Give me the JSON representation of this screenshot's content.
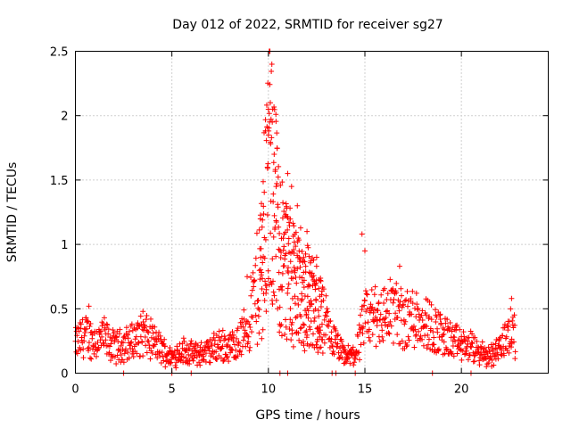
{
  "chart_data": {
    "type": "scatter",
    "title": "Day 012 of 2022, SRMTID for receiver sg27",
    "xlabel": "GPS time / hours",
    "ylabel": "SRMTID / TECUs",
    "xlim": [
      0,
      24.5
    ],
    "ylim": [
      0,
      2.5
    ],
    "xticks": [
      0,
      5,
      10,
      15,
      20
    ],
    "yticks": [
      0,
      0.5,
      1,
      1.5,
      2,
      2.5
    ],
    "ytick_labels": [
      "0",
      "0.5",
      "1",
      "1.5",
      "2",
      "2.5"
    ],
    "grid": true,
    "marker": "+",
    "series": [
      {
        "name": "SRMTID",
        "color": "#ff0000",
        "trend": [
          [
            0.0,
            0.22
          ],
          [
            0.5,
            0.3
          ],
          [
            1.0,
            0.25
          ],
          [
            1.5,
            0.27
          ],
          [
            2.0,
            0.2
          ],
          [
            2.5,
            0.22
          ],
          [
            3.0,
            0.25
          ],
          [
            3.5,
            0.3
          ],
          [
            4.0,
            0.25
          ],
          [
            4.5,
            0.18
          ],
          [
            5.0,
            0.12
          ],
          [
            5.5,
            0.18
          ],
          [
            6.0,
            0.15
          ],
          [
            6.5,
            0.15
          ],
          [
            7.0,
            0.18
          ],
          [
            7.5,
            0.22
          ],
          [
            8.0,
            0.2
          ],
          [
            8.5,
            0.25
          ],
          [
            9.0,
            0.4
          ],
          [
            9.5,
            0.7
          ],
          [
            10.0,
            1.5
          ],
          [
            10.3,
            1.4
          ],
          [
            10.5,
            1.0
          ],
          [
            11.0,
            0.8
          ],
          [
            11.5,
            0.7
          ],
          [
            12.0,
            0.6
          ],
          [
            12.5,
            0.5
          ],
          [
            13.0,
            0.35
          ],
          [
            13.5,
            0.22
          ],
          [
            14.0,
            0.12
          ],
          [
            14.5,
            0.15
          ],
          [
            15.0,
            0.4
          ],
          [
            15.5,
            0.45
          ],
          [
            16.0,
            0.45
          ],
          [
            16.5,
            0.5
          ],
          [
            17.0,
            0.4
          ],
          [
            17.5,
            0.45
          ],
          [
            18.0,
            0.42
          ],
          [
            18.5,
            0.35
          ],
          [
            19.0,
            0.3
          ],
          [
            19.5,
            0.25
          ],
          [
            20.0,
            0.22
          ],
          [
            20.5,
            0.2
          ],
          [
            21.0,
            0.15
          ],
          [
            21.5,
            0.14
          ],
          [
            22.0,
            0.2
          ],
          [
            22.5,
            0.35
          ],
          [
            22.8,
            0.28
          ]
        ],
        "peaks": [
          [
            10.0,
            2.05
          ],
          [
            10.1,
            2.1
          ],
          [
            10.2,
            1.95
          ],
          [
            10.3,
            1.7
          ],
          [
            10.0,
            1.85
          ],
          [
            9.95,
            1.6
          ],
          [
            10.4,
            1.45
          ],
          [
            11.0,
            1.55
          ],
          [
            11.2,
            1.45
          ],
          [
            11.5,
            1.3
          ],
          [
            12.0,
            1.1
          ],
          [
            12.5,
            0.9
          ],
          [
            14.85,
            1.08
          ],
          [
            15.0,
            0.95
          ],
          [
            16.8,
            0.83
          ],
          [
            22.6,
            0.58
          ],
          [
            0.7,
            0.52
          ],
          [
            3.5,
            0.48
          ],
          [
            8.9,
            0.75
          ]
        ],
        "zeros": [
          2.5,
          5.0,
          6.0,
          10.6,
          11.0,
          13.3,
          13.5,
          14.5,
          18.5,
          20.5
        ]
      }
    ]
  }
}
